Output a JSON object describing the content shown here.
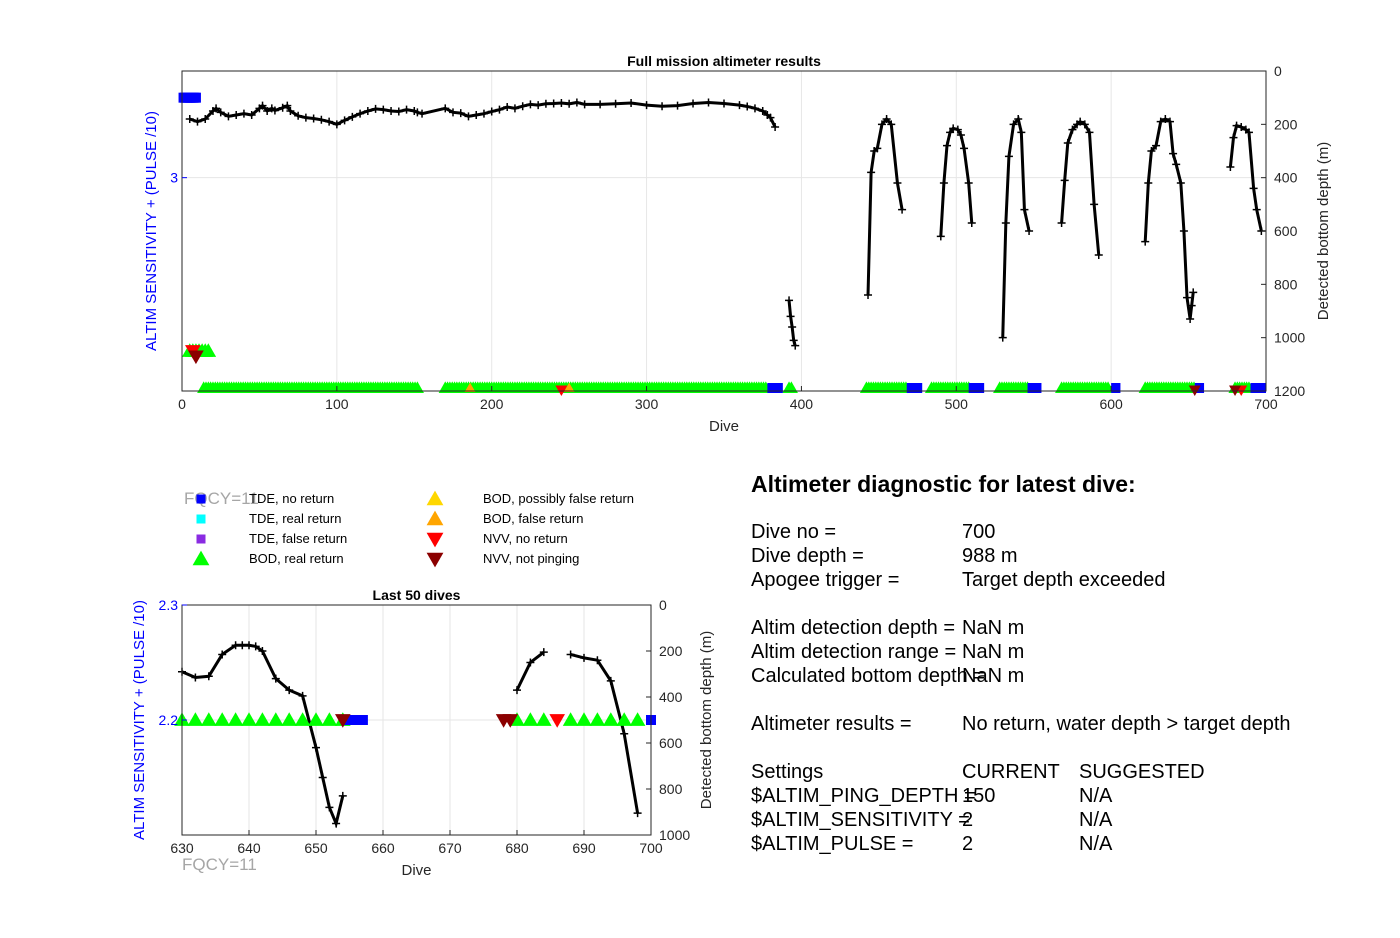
{
  "chart_data": [
    {
      "type": "line",
      "title": "Full mission altimeter results",
      "xlabel": "Dive",
      "ylabel_left": "ALTIM SENSITIVITY + (PULSE /10)",
      "ylabel_right": "Detected bottom depth (m)",
      "xlim": [
        0,
        700
      ],
      "x_ticks": [
        0,
        100,
        200,
        300,
        400,
        500,
        600,
        700
      ],
      "ylim_left": [
        2.2,
        3.4
      ],
      "y_ticks_left": [
        3
      ],
      "ylim_right": [
        0,
        1200
      ],
      "y_ticks_right": [
        0,
        200,
        400,
        600,
        800,
        1000,
        1200
      ],
      "grid": true,
      "left_series": [
        {
          "legend": "TDE, no return",
          "color": "#0000ff",
          "marker": "square",
          "x": [
            1,
            2,
            3,
            4,
            5,
            6,
            7,
            8,
            9
          ],
          "y": [
            3.3,
            3.3,
            3.3,
            3.3,
            3.3,
            3.3,
            3.3,
            3.3,
            3.3
          ]
        },
        {
          "legend": "BOD, real return",
          "color": "#00ff00",
          "marker": "triangle-up",
          "x": [
            5,
            7,
            9,
            11,
            13,
            15,
            17
          ],
          "y": [
            2.35,
            2.35,
            2.35,
            2.35,
            2.35,
            2.35,
            2.35
          ]
        },
        {
          "legend": "NVV, no return",
          "color": "#ff0000",
          "marker": "triangle-down",
          "x": [
            7
          ],
          "y": [
            2.35
          ]
        },
        {
          "legend": "NVV, not pinging",
          "color": "#8b0000",
          "marker": "triangle-down",
          "x": [
            9
          ],
          "y": [
            2.33
          ]
        }
      ],
      "bottom_band": {
        "green_ranges": [
          [
            14,
            153
          ],
          [
            170,
            378
          ],
          [
            392,
            394
          ],
          [
            442,
            468
          ],
          [
            484,
            508
          ],
          [
            528,
            546
          ],
          [
            568,
            598
          ],
          [
            622,
            654
          ],
          [
            680,
            690
          ]
        ],
        "blue_ranges": [
          [
            378,
            388
          ],
          [
            468,
            478
          ],
          [
            508,
            518
          ],
          [
            546,
            555
          ],
          [
            600,
            606
          ],
          [
            654,
            660
          ],
          [
            690,
            700
          ]
        ],
        "red_markers": [
          [
            245,
            1200
          ],
          [
            684,
            1200
          ]
        ],
        "darkred_markers": [
          [
            654,
            1200
          ],
          [
            680,
            1200
          ]
        ],
        "orange_markers": [
          [
            186,
            1200
          ],
          [
            250,
            1200
          ]
        ]
      },
      "depth_series": [
        {
          "x": [
            5,
            10,
            15,
            20,
            22,
            25,
            30,
            35,
            40,
            45,
            50,
            52,
            55,
            58,
            60,
            65,
            68,
            70,
            75,
            80,
            85,
            90,
            95,
            100,
            105,
            110,
            115,
            120,
            125,
            130,
            135,
            140,
            145,
            150,
            152,
            155,
            170,
            175,
            180,
            185,
            190,
            195,
            200,
            205,
            210,
            215,
            220,
            225,
            230,
            235,
            240,
            245,
            250,
            255,
            260,
            270,
            280,
            290,
            300,
            310,
            320,
            330,
            340,
            350,
            360,
            365,
            370,
            375,
            378,
            380,
            383
          ],
          "y": [
            180,
            190,
            180,
            150,
            140,
            155,
            170,
            165,
            160,
            165,
            140,
            130,
            150,
            140,
            148,
            138,
            130,
            150,
            168,
            175,
            178,
            183,
            190,
            200,
            185,
            172,
            160,
            150,
            142,
            145,
            150,
            152,
            145,
            150,
            155,
            160,
            140,
            155,
            158,
            170,
            165,
            160,
            152,
            145,
            135,
            140,
            132,
            125,
            128,
            123,
            122,
            120,
            123,
            118,
            125,
            125,
            123,
            120,
            128,
            132,
            130,
            122,
            118,
            122,
            128,
            133,
            140,
            150,
            165,
            175,
            210
          ]
        },
        {
          "x": [
            392,
            393,
            394,
            395,
            396
          ],
          "y": [
            860,
            920,
            960,
            1010,
            1030
          ]
        },
        {
          "x": [
            443,
            445,
            447,
            449,
            452,
            455,
            458,
            462,
            465
          ],
          "y": [
            840,
            380,
            300,
            290,
            200,
            180,
            200,
            420,
            520
          ]
        },
        {
          "x": [
            490,
            492,
            494,
            496,
            498,
            501,
            503,
            505,
            508,
            510
          ],
          "y": [
            620,
            420,
            280,
            230,
            215,
            220,
            240,
            290,
            420,
            570
          ]
        },
        {
          "x": [
            530,
            532,
            534,
            537,
            540,
            542,
            544,
            547
          ],
          "y": [
            1000,
            570,
            320,
            200,
            180,
            230,
            520,
            600
          ]
        },
        {
          "x": [
            568,
            570,
            572,
            575,
            578,
            580,
            583,
            586,
            589,
            592
          ],
          "y": [
            570,
            410,
            270,
            220,
            200,
            190,
            200,
            230,
            500,
            690
          ]
        },
        {
          "x": [
            622,
            624,
            626,
            629,
            632,
            635,
            638,
            640,
            642,
            645,
            647,
            649,
            651,
            652,
            653
          ],
          "y": [
            640,
            420,
            300,
            280,
            190,
            180,
            190,
            310,
            350,
            420,
            600,
            850,
            930,
            880,
            830
          ]
        },
        {
          "x": [
            677,
            679,
            681,
            684,
            687,
            689,
            692,
            694,
            697
          ],
          "y": [
            360,
            250,
            205,
            210,
            220,
            230,
            440,
            520,
            600
          ]
        }
      ]
    },
    {
      "type": "line",
      "title": "Last 50 dives",
      "xlabel": "Dive",
      "ylabel_left": "ALTIM SENSITIVITY + (PULSE /10)",
      "ylabel_right": "Detected bottom depth (m)",
      "xlim": [
        630,
        700
      ],
      "x_ticks": [
        630,
        640,
        650,
        660,
        670,
        680,
        690,
        700
      ],
      "ylim_left": [
        2.1,
        2.3
      ],
      "y_ticks_left": [
        2.2,
        2.3
      ],
      "ylim_right": [
        0,
        1000
      ],
      "y_ticks_right": [
        0,
        200,
        400,
        600,
        800,
        1000
      ],
      "grid": true,
      "left_series": [
        {
          "legend": "BOD, real return",
          "color": "#00ff00",
          "marker": "triangle-up",
          "x": [
            630,
            632,
            634,
            636,
            638,
            640,
            642,
            644,
            646,
            648,
            650,
            652,
            654,
            680,
            682,
            684,
            688,
            690,
            692,
            694,
            696,
            698
          ],
          "y": [
            2.2,
            2.2,
            2.2,
            2.2,
            2.2,
            2.2,
            2.2,
            2.2,
            2.2,
            2.2,
            2.2,
            2.2,
            2.2,
            2.2,
            2.2,
            2.2,
            2.2,
            2.2,
            2.2,
            2.2,
            2.2,
            2.2
          ]
        },
        {
          "legend": "TDE, no return",
          "color": "#0000ff",
          "marker": "square",
          "x": [
            655,
            656,
            657,
            700
          ],
          "y": [
            2.2,
            2.2,
            2.2,
            2.2
          ]
        },
        {
          "legend": "NVV, no return",
          "color": "#ff0000",
          "marker": "triangle-down",
          "x": [
            686
          ],
          "y": [
            2.2
          ]
        },
        {
          "legend": "NVV, not pinging",
          "color": "#8b0000",
          "marker": "triangle-down",
          "x": [
            654,
            678,
            679
          ],
          "y": [
            2.2,
            2.2,
            2.2
          ]
        }
      ],
      "depth_series": [
        {
          "x": [
            630,
            632,
            634,
            636,
            638,
            639,
            640,
            641,
            642,
            644,
            646,
            648,
            650,
            651,
            652,
            653,
            654
          ],
          "y": [
            290,
            315,
            310,
            215,
            175,
            175,
            175,
            180,
            200,
            320,
            370,
            395,
            620,
            750,
            880,
            950,
            830
          ]
        },
        {
          "x": [
            680,
            682,
            684
          ],
          "y": [
            370,
            250,
            205
          ]
        },
        {
          "x": [
            688,
            690,
            692,
            694,
            696,
            698
          ],
          "y": [
            215,
            230,
            240,
            330,
            560,
            905
          ]
        }
      ]
    }
  ],
  "fqcy_labels": [
    "FQCY=11",
    "FQCY=11"
  ],
  "legend": {
    "items": [
      {
        "label": "TDE, no return",
        "color": "#0000ff",
        "marker": "square"
      },
      {
        "label": "TDE, real return",
        "color": "#00ffff",
        "marker": "square"
      },
      {
        "label": "TDE, false return",
        "color": "#8a2be2",
        "marker": "square"
      },
      {
        "label": "BOD, real return",
        "color": "#00ff00",
        "marker": "triangle-up"
      },
      {
        "label": "BOD, possibly false return",
        "color": "#ffd700",
        "marker": "triangle-up"
      },
      {
        "label": "BOD, false return",
        "color": "#ffa500",
        "marker": "triangle-up"
      },
      {
        "label": "NVV, no return",
        "color": "#ff0000",
        "marker": "triangle-down"
      },
      {
        "label": "NVV, not pinging",
        "color": "#8b0000",
        "marker": "triangle-down"
      }
    ]
  },
  "diagnostic": {
    "title": "Altimeter diagnostic for latest dive:",
    "rows": [
      {
        "label": "Dive no =",
        "value": "700"
      },
      {
        "label": "Dive depth =",
        "value": "988 m"
      },
      {
        "label": "Apogee trigger =",
        "value": "Target depth exceeded"
      },
      {
        "label": "Altim detection depth =",
        "value": "NaN m"
      },
      {
        "label": "Altim detection range =",
        "value": "NaN m"
      },
      {
        "label": "Calculated bottom depth =",
        "value": "NaN m"
      },
      {
        "label": "Altimeter results =",
        "value": "No return, water depth > target depth"
      }
    ],
    "settings": {
      "header": {
        "label": "Settings",
        "current": "CURRENT",
        "suggested": "SUGGESTED"
      },
      "rows": [
        {
          "label": "$ALTIM_PING_DEPTH =",
          "current": "150",
          "suggested": "N/A"
        },
        {
          "label": "$ALTIM_SENSITIVITY =",
          "current": "2",
          "suggested": "N/A"
        },
        {
          "label": "$ALTIM_PULSE =",
          "current": "2",
          "suggested": "N/A"
        }
      ]
    }
  }
}
